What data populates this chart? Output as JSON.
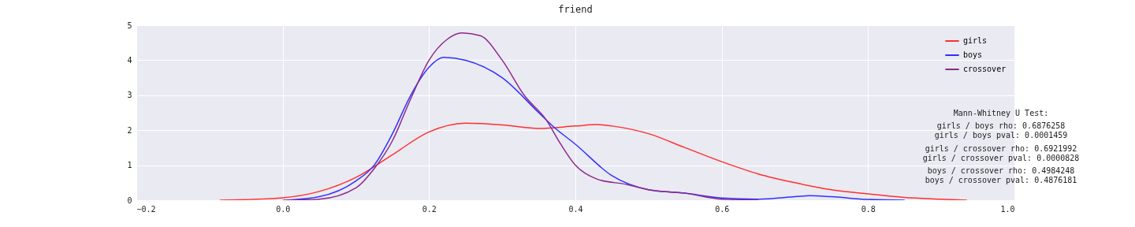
{
  "chart_data": {
    "type": "line",
    "title": "friend",
    "xlim": [
      -0.2,
      1.0
    ],
    "ylim": [
      0,
      5
    ],
    "xticks": [
      {
        "value": -0.2,
        "label": "−0.2"
      },
      {
        "value": 0,
        "label": "0.0"
      },
      {
        "value": 0.2,
        "label": "0.2"
      },
      {
        "value": 0.4,
        "label": "0.4"
      },
      {
        "value": 0.6,
        "label": "0.6"
      },
      {
        "value": 0.8,
        "label": "0.8"
      },
      {
        "value": 1.0,
        "label": "1.0"
      }
    ],
    "yticks": [
      0,
      1,
      2,
      3,
      4,
      5
    ],
    "grid": true,
    "legend": "top right",
    "line_style": "solid",
    "annotations": [
      "Mann-Whitney U Test:",
      "girls / boys  rho: 0.6876258",
      "girls / boys pval: 0.0001459",
      "girls / crossover  rho: 0.6921992",
      "girls / crossover pval: 0.0000828",
      "boys / crossover  rho: 0.4984248",
      "boys / crossover pval: 0.4876181"
    ],
    "series": [
      {
        "name": "girls",
        "color": "#ff3030",
        "x": [
          -0.086,
          0,
          0.05,
          0.1,
          0.15,
          0.2,
          0.25,
          0.3,
          0.35,
          0.4,
          0.43,
          0.45,
          0.5,
          0.55,
          0.6,
          0.65,
          0.7,
          0.75,
          0.8,
          0.85,
          0.9,
          0.935
        ],
        "values": [
          0,
          0.07,
          0.25,
          0.65,
          1.3,
          1.95,
          2.2,
          2.15,
          2.05,
          2.12,
          2.16,
          2.12,
          1.9,
          1.5,
          1.1,
          0.75,
          0.5,
          0.3,
          0.18,
          0.08,
          0.03,
          0
        ]
      },
      {
        "name": "boys",
        "color": "#3030ff",
        "x": [
          0.005,
          0.05,
          0.1,
          0.125,
          0.15,
          0.175,
          0.2,
          0.22,
          0.25,
          0.3,
          0.35,
          0.37,
          0.4,
          0.45,
          0.5,
          0.55,
          0.6,
          0.65,
          0.7,
          0.72,
          0.75,
          0.8,
          0.85
        ],
        "values": [
          0,
          0.1,
          0.55,
          1.0,
          1.9,
          3.0,
          3.8,
          4.08,
          4.0,
          3.5,
          2.5,
          2.1,
          1.6,
          0.7,
          0.3,
          0.2,
          0.06,
          0.03,
          0.1,
          0.13,
          0.1,
          0.02,
          0
        ]
      },
      {
        "name": "crossover",
        "color": "#8b2a8b",
        "x": [
          0,
          0.05,
          0.1,
          0.125,
          0.15,
          0.175,
          0.2,
          0.225,
          0.245,
          0.27,
          0.3,
          0.33,
          0.36,
          0.38,
          0.4,
          0.43,
          0.47,
          0.5,
          0.55,
          0.6,
          0.65
        ],
        "values": [
          0,
          0.03,
          0.35,
          0.9,
          1.7,
          2.9,
          4.0,
          4.6,
          4.78,
          4.7,
          4.0,
          3.0,
          2.3,
          1.6,
          1.0,
          0.6,
          0.45,
          0.3,
          0.2,
          0.03,
          0
        ]
      }
    ]
  }
}
